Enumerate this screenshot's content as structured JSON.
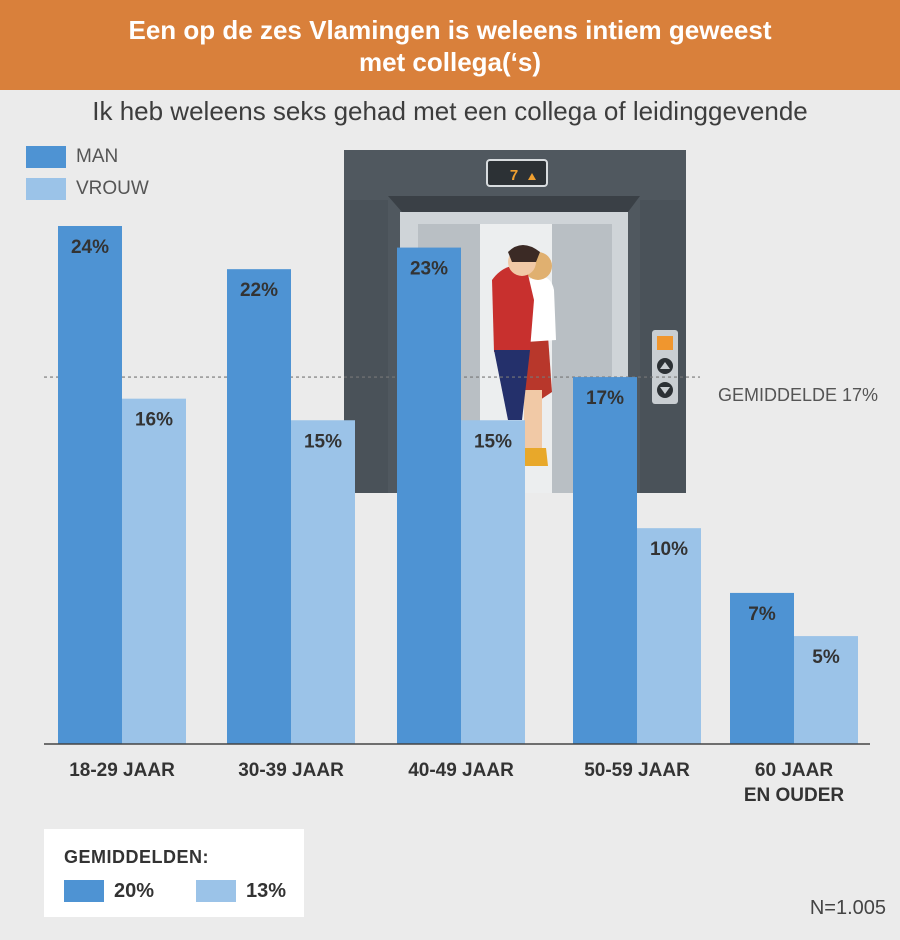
{
  "header": {
    "title_line1": "Een op de zes Vlamingen is weleens intiem geweest",
    "title_line2": "met collega(‘s)"
  },
  "colors": {
    "header_bg": "#d9803b",
    "man": "#4e93d3",
    "vrouw": "#9bc3e8",
    "background": "#ebebeb"
  },
  "chart_data": {
    "type": "bar",
    "title": "Ik heb weleens seks gehad met een collega of leidinggevende",
    "categories": [
      [
        "18-29 JAAR"
      ],
      [
        "30-39 JAAR"
      ],
      [
        "40-49 JAAR"
      ],
      [
        "50-59 JAAR"
      ],
      [
        "60 JAAR",
        "EN OUDER"
      ]
    ],
    "series": [
      {
        "name": "MAN",
        "values": [
          24,
          22,
          23,
          17,
          7
        ],
        "color": "#4e93d3"
      },
      {
        "name": "VROUW",
        "values": [
          16,
          15,
          15,
          10,
          5
        ],
        "color": "#9bc3e8"
      }
    ],
    "data_labels": {
      "man": [
        "24%",
        "22%",
        "23%",
        "17%",
        "7%"
      ],
      "vrouw": [
        "16%",
        "15%",
        "15%",
        "10%",
        "5%"
      ]
    },
    "unit": "%",
    "ylim": [
      0,
      24
    ],
    "reference_line": {
      "value": 17,
      "label": "GEMIDDELDE 17%"
    },
    "legend": {
      "placement": "top-left",
      "entries": [
        "MAN",
        "VROUW"
      ]
    }
  },
  "averages": {
    "title": "GEMIDDELDEN:",
    "man": "20%",
    "vrouw": "13%"
  },
  "sample_size": "N=1.005",
  "illustration": {
    "floor_display": "7"
  }
}
